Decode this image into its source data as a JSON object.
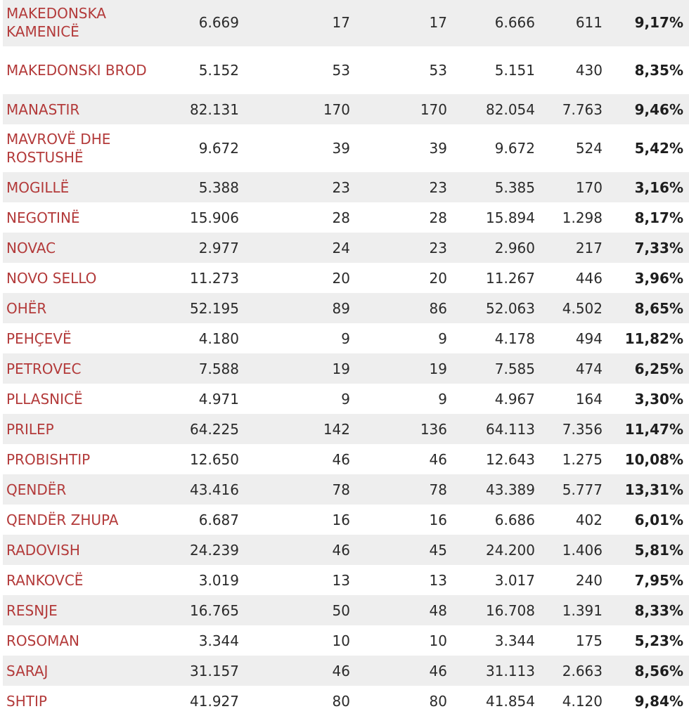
{
  "rows": [
    {
      "name": "MAKEDONSKA KAMENICË",
      "c1": "6.669",
      "c2": "17",
      "c3": "17",
      "c4": "6.666",
      "c5": "611",
      "pct": "9,17%"
    },
    {
      "name": "MAKEDONSKI BROD",
      "c1": "5.152",
      "c2": "53",
      "c3": "53",
      "c4": "5.151",
      "c5": "430",
      "pct": "8,35%"
    },
    {
      "name": "MANASTIR",
      "c1": "82.131",
      "c2": "170",
      "c3": "170",
      "c4": "82.054",
      "c5": "7.763",
      "pct": "9,46%"
    },
    {
      "name": "MAVROVË DHE ROSTUSHË",
      "c1": "9.672",
      "c2": "39",
      "c3": "39",
      "c4": "9.672",
      "c5": "524",
      "pct": "5,42%"
    },
    {
      "name": "MOGILLË",
      "c1": "5.388",
      "c2": "23",
      "c3": "23",
      "c4": "5.385",
      "c5": "170",
      "pct": "3,16%"
    },
    {
      "name": "NEGOTINË",
      "c1": "15.906",
      "c2": "28",
      "c3": "28",
      "c4": "15.894",
      "c5": "1.298",
      "pct": "8,17%"
    },
    {
      "name": "NOVAC",
      "c1": "2.977",
      "c2": "24",
      "c3": "23",
      "c4": "2.960",
      "c5": "217",
      "pct": "7,33%"
    },
    {
      "name": "NOVO SELLO",
      "c1": "11.273",
      "c2": "20",
      "c3": "20",
      "c4": "11.267",
      "c5": "446",
      "pct": "3,96%"
    },
    {
      "name": "OHËR",
      "c1": "52.195",
      "c2": "89",
      "c3": "86",
      "c4": "52.063",
      "c5": "4.502",
      "pct": "8,65%"
    },
    {
      "name": "PEHÇEVË",
      "c1": "4.180",
      "c2": "9",
      "c3": "9",
      "c4": "4.178",
      "c5": "494",
      "pct": "11,82%"
    },
    {
      "name": "PETROVEC",
      "c1": "7.588",
      "c2": "19",
      "c3": "19",
      "c4": "7.585",
      "c5": "474",
      "pct": "6,25%"
    },
    {
      "name": "PLLASNICË",
      "c1": "4.971",
      "c2": "9",
      "c3": "9",
      "c4": "4.967",
      "c5": "164",
      "pct": "3,30%"
    },
    {
      "name": "PRILEP",
      "c1": "64.225",
      "c2": "142",
      "c3": "136",
      "c4": "64.113",
      "c5": "7.356",
      "pct": "11,47%"
    },
    {
      "name": "PROBISHTIP",
      "c1": "12.650",
      "c2": "46",
      "c3": "46",
      "c4": "12.643",
      "c5": "1.275",
      "pct": "10,08%"
    },
    {
      "name": "QENDËR",
      "c1": "43.416",
      "c2": "78",
      "c3": "78",
      "c4": "43.389",
      "c5": "5.777",
      "pct": "13,31%"
    },
    {
      "name": "QENDËR ZHUPA",
      "c1": "6.687",
      "c2": "16",
      "c3": "16",
      "c4": "6.686",
      "c5": "402",
      "pct": "6,01%"
    },
    {
      "name": "RADOVISH",
      "c1": "24.239",
      "c2": "46",
      "c3": "45",
      "c4": "24.200",
      "c5": "1.406",
      "pct": "5,81%"
    },
    {
      "name": "RANKOVCË",
      "c1": "3.019",
      "c2": "13",
      "c3": "13",
      "c4": "3.017",
      "c5": "240",
      "pct": "7,95%"
    },
    {
      "name": "RESNJE",
      "c1": "16.765",
      "c2": "50",
      "c3": "48",
      "c4": "16.708",
      "c5": "1.391",
      "pct": "8,33%"
    },
    {
      "name": "ROSOMAN",
      "c1": "3.344",
      "c2": "10",
      "c3": "10",
      "c4": "3.344",
      "c5": "175",
      "pct": "5,23%"
    },
    {
      "name": "SARAJ",
      "c1": "31.157",
      "c2": "46",
      "c3": "46",
      "c4": "31.113",
      "c5": "2.663",
      "pct": "8,56%"
    },
    {
      "name": "SHTIP",
      "c1": "41.927",
      "c2": "80",
      "c3": "80",
      "c4": "41.854",
      "c5": "4.120",
      "pct": "9,84%"
    }
  ]
}
